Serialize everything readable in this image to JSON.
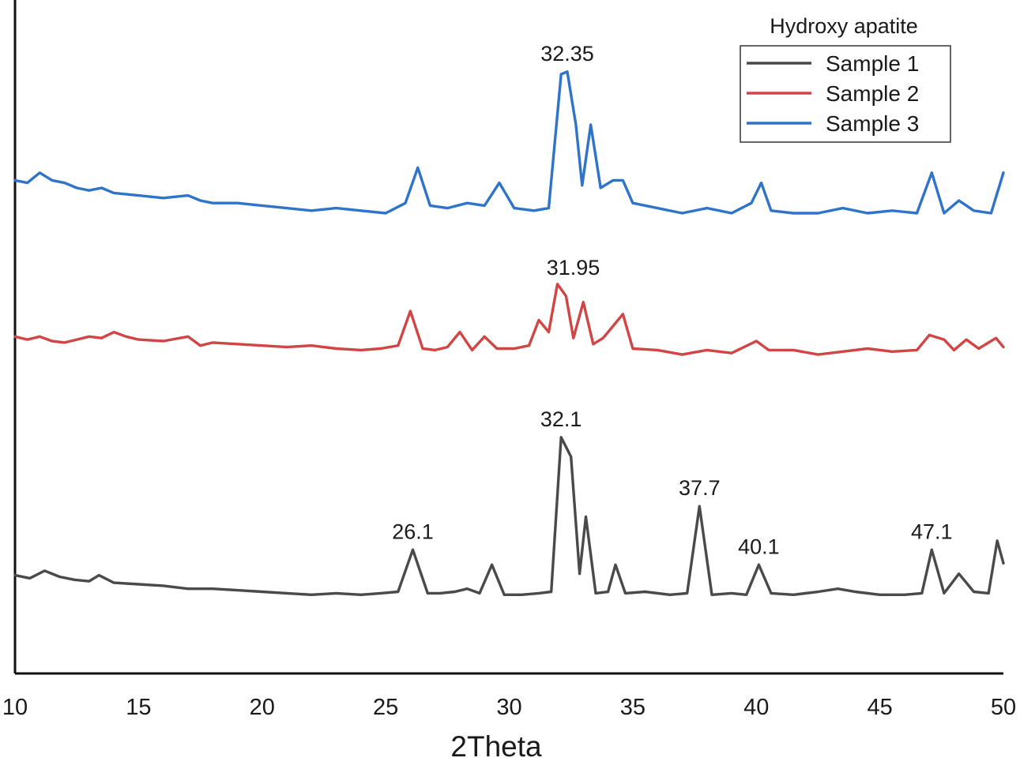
{
  "chart_data": {
    "type": "line",
    "xlabel": "2Theta",
    "ylabel": "",
    "xlim": [
      10,
      50
    ],
    "xticks": [
      10,
      15,
      20,
      25,
      30,
      35,
      40,
      45,
      50
    ],
    "y_axis_ticks_shown": false,
    "grid": false,
    "legend": {
      "title": "Hydroxy apatite",
      "placement": "top-right"
    },
    "series": [
      {
        "name": "Sample 1",
        "color": "#4a4a4a",
        "points": [
          [
            10,
            0.06
          ],
          [
            10.6,
            0.04
          ],
          [
            11.2,
            0.09
          ],
          [
            11.8,
            0.05
          ],
          [
            12.4,
            0.03
          ],
          [
            13,
            0.02
          ],
          [
            13.4,
            0.06
          ],
          [
            14,
            0.01
          ],
          [
            15,
            0.0
          ],
          [
            16,
            -0.01
          ],
          [
            17,
            -0.03
          ],
          [
            18,
            -0.03
          ],
          [
            19,
            -0.04
          ],
          [
            20,
            -0.05
          ],
          [
            21,
            -0.06
          ],
          [
            22,
            -0.07
          ],
          [
            23,
            -0.06
          ],
          [
            24,
            -0.07
          ],
          [
            24.8,
            -0.06
          ],
          [
            25.5,
            -0.05
          ],
          [
            26.1,
            0.23
          ],
          [
            26.7,
            -0.06
          ],
          [
            27.2,
            -0.06
          ],
          [
            27.8,
            -0.05
          ],
          [
            28.3,
            -0.03
          ],
          [
            28.8,
            -0.06
          ],
          [
            29.3,
            0.13
          ],
          [
            29.8,
            -0.07
          ],
          [
            30.5,
            -0.07
          ],
          [
            31.2,
            -0.06
          ],
          [
            31.7,
            -0.05
          ],
          [
            32.1,
            0.98
          ],
          [
            32.5,
            0.85
          ],
          [
            32.85,
            0.07
          ],
          [
            33.1,
            0.45
          ],
          [
            33.5,
            -0.06
          ],
          [
            34.0,
            -0.05
          ],
          [
            34.3,
            0.13
          ],
          [
            34.7,
            -0.06
          ],
          [
            35.5,
            -0.05
          ],
          [
            36.5,
            -0.07
          ],
          [
            37.2,
            -0.06
          ],
          [
            37.7,
            0.52
          ],
          [
            38.2,
            -0.07
          ],
          [
            39.0,
            -0.06
          ],
          [
            39.6,
            -0.07
          ],
          [
            40.1,
            0.13
          ],
          [
            40.6,
            -0.06
          ],
          [
            41.5,
            -0.07
          ],
          [
            42.5,
            -0.05
          ],
          [
            43.3,
            -0.03
          ],
          [
            44.0,
            -0.05
          ],
          [
            45.0,
            -0.07
          ],
          [
            46.0,
            -0.07
          ],
          [
            46.7,
            -0.06
          ],
          [
            47.1,
            0.23
          ],
          [
            47.6,
            -0.06
          ],
          [
            48.2,
            0.07
          ],
          [
            48.8,
            -0.05
          ],
          [
            49.4,
            -0.06
          ],
          [
            49.75,
            0.29
          ],
          [
            50,
            0.14
          ]
        ],
        "peak_labels": [
          {
            "x": 26.1,
            "label": "26.1"
          },
          {
            "x": 32.1,
            "label": "32.1"
          },
          {
            "x": 37.7,
            "label": "37.7"
          },
          {
            "x": 40.1,
            "label": "40.1"
          },
          {
            "x": 47.1,
            "label": "47.1"
          }
        ]
      },
      {
        "name": "Sample 2",
        "color": "#d24545",
        "points": [
          [
            10,
            0.03
          ],
          [
            10.5,
            0.01
          ],
          [
            11,
            0.03
          ],
          [
            11.5,
            0.0
          ],
          [
            12,
            -0.01
          ],
          [
            12.5,
            0.01
          ],
          [
            13,
            0.03
          ],
          [
            13.5,
            0.02
          ],
          [
            14,
            0.06
          ],
          [
            14.5,
            0.03
          ],
          [
            15,
            0.01
          ],
          [
            16,
            0.0
          ],
          [
            17,
            0.03
          ],
          [
            17.5,
            -0.03
          ],
          [
            18,
            -0.01
          ],
          [
            19,
            -0.02
          ],
          [
            20,
            -0.03
          ],
          [
            21,
            -0.04
          ],
          [
            22,
            -0.03
          ],
          [
            23,
            -0.05
          ],
          [
            24,
            -0.06
          ],
          [
            24.8,
            -0.05
          ],
          [
            25.5,
            -0.03
          ],
          [
            26.0,
            0.2
          ],
          [
            26.5,
            -0.05
          ],
          [
            27.0,
            -0.06
          ],
          [
            27.5,
            -0.04
          ],
          [
            28.0,
            0.06
          ],
          [
            28.5,
            -0.06
          ],
          [
            29.0,
            0.03
          ],
          [
            29.5,
            -0.05
          ],
          [
            30.2,
            -0.05
          ],
          [
            30.8,
            -0.03
          ],
          [
            31.2,
            0.14
          ],
          [
            31.6,
            0.06
          ],
          [
            31.95,
            0.38
          ],
          [
            32.3,
            0.3
          ],
          [
            32.6,
            0.02
          ],
          [
            33.0,
            0.26
          ],
          [
            33.4,
            -0.02
          ],
          [
            33.8,
            0.02
          ],
          [
            34.2,
            0.1
          ],
          [
            34.6,
            0.18
          ],
          [
            35.0,
            -0.05
          ],
          [
            36.0,
            -0.06
          ],
          [
            37.0,
            -0.09
          ],
          [
            38.0,
            -0.06
          ],
          [
            39.0,
            -0.08
          ],
          [
            40.0,
            0.0
          ],
          [
            40.5,
            -0.06
          ],
          [
            41.5,
            -0.06
          ],
          [
            42.5,
            -0.09
          ],
          [
            43.5,
            -0.07
          ],
          [
            44.5,
            -0.05
          ],
          [
            45.5,
            -0.07
          ],
          [
            46.5,
            -0.06
          ],
          [
            47.0,
            0.04
          ],
          [
            47.6,
            0.01
          ],
          [
            48.0,
            -0.06
          ],
          [
            48.5,
            0.01
          ],
          [
            49.0,
            -0.05
          ],
          [
            49.7,
            0.02
          ],
          [
            50,
            -0.04
          ]
        ]
      },
      {
        "name": "Sample 3",
        "color": "#2f74c8",
        "points": [
          [
            10,
            0.03
          ],
          [
            10.5,
            0.02
          ],
          [
            11.0,
            0.06
          ],
          [
            11.5,
            0.03
          ],
          [
            12,
            0.02
          ],
          [
            12.5,
            0.0
          ],
          [
            13,
            -0.01
          ],
          [
            13.5,
            0.0
          ],
          [
            14,
            -0.02
          ],
          [
            15,
            -0.03
          ],
          [
            16,
            -0.04
          ],
          [
            17,
            -0.03
          ],
          [
            17.5,
            -0.05
          ],
          [
            18,
            -0.06
          ],
          [
            19,
            -0.06
          ],
          [
            20,
            -0.07
          ],
          [
            21,
            -0.08
          ],
          [
            22,
            -0.09
          ],
          [
            23,
            -0.08
          ],
          [
            24,
            -0.09
          ],
          [
            25,
            -0.1
          ],
          [
            25.8,
            -0.06
          ],
          [
            26.3,
            0.08
          ],
          [
            26.8,
            -0.07
          ],
          [
            27.5,
            -0.08
          ],
          [
            28.3,
            -0.06
          ],
          [
            29.0,
            -0.07
          ],
          [
            29.6,
            0.02
          ],
          [
            30.2,
            -0.08
          ],
          [
            31.0,
            -0.09
          ],
          [
            31.6,
            -0.08
          ],
          [
            32.1,
            0.45
          ],
          [
            32.35,
            0.46
          ],
          [
            32.7,
            0.25
          ],
          [
            32.95,
            0.01
          ],
          [
            33.3,
            0.25
          ],
          [
            33.7,
            0.0
          ],
          [
            34.2,
            0.03
          ],
          [
            34.6,
            0.03
          ],
          [
            35.0,
            -0.06
          ],
          [
            36.0,
            -0.08
          ],
          [
            37.0,
            -0.1
          ],
          [
            38.0,
            -0.08
          ],
          [
            39.0,
            -0.1
          ],
          [
            39.8,
            -0.06
          ],
          [
            40.2,
            0.02
          ],
          [
            40.6,
            -0.09
          ],
          [
            41.5,
            -0.1
          ],
          [
            42.5,
            -0.1
          ],
          [
            43.5,
            -0.08
          ],
          [
            44.5,
            -0.1
          ],
          [
            45.5,
            -0.09
          ],
          [
            46.5,
            -0.1
          ],
          [
            47.1,
            0.06
          ],
          [
            47.6,
            -0.1
          ],
          [
            48.2,
            -0.05
          ],
          [
            48.8,
            -0.09
          ],
          [
            49.5,
            -0.1
          ],
          [
            50,
            0.06
          ]
        ],
        "peak_labels": [
          {
            "x": 32.35,
            "label": "32.35"
          }
        ]
      }
    ],
    "series_annotations": [
      {
        "series": "Sample 2",
        "x": 31.95,
        "label": "31.95"
      }
    ]
  }
}
